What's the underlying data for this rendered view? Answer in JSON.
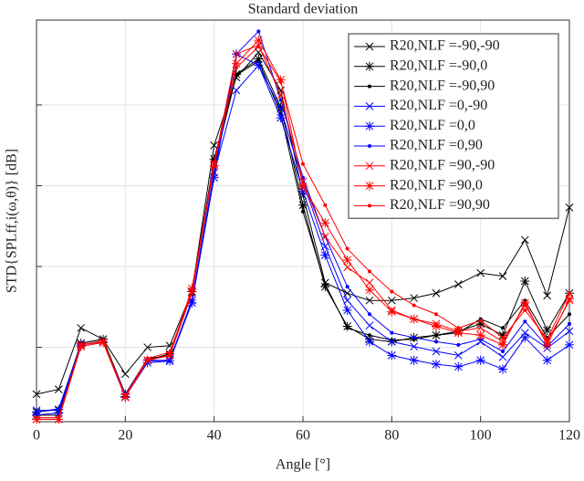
{
  "chart_data": {
    "type": "line",
    "title": "Standard deviation",
    "xlabel": "Angle [°]",
    "ylabel": "STD{SPLff,i(ω,θ)} [dB]",
    "x": [
      0,
      5,
      10,
      15,
      20,
      25,
      30,
      35,
      40,
      45,
      50,
      55,
      60,
      65,
      70,
      75,
      80,
      85,
      90,
      95,
      100,
      105,
      110,
      115,
      120
    ],
    "xlim": [
      0,
      120
    ],
    "xticks": [
      0,
      20,
      40,
      60,
      80,
      100,
      120
    ],
    "ylim": [
      0.08,
      5.05
    ],
    "yticks": [
      1,
      2,
      3,
      4
    ],
    "show_ytick_labels": false,
    "grid": true,
    "legend": "upper right",
    "series": [
      {
        "name": "R20,NLF =-90,-90",
        "color": "#000000",
        "marker": "x",
        "values": [
          0.42,
          0.48,
          1.24,
          1.1,
          0.67,
          1.0,
          1.02,
          1.69,
          3.5,
          4.34,
          4.65,
          4.18,
          2.88,
          1.8,
          1.67,
          1.58,
          1.58,
          1.61,
          1.67,
          1.78,
          1.92,
          1.88,
          2.33,
          1.64,
          2.73
        ]
      },
      {
        "name": "R20,NLF =-90,0",
        "color": "#000000",
        "marker": "*",
        "values": [
          0.2,
          0.23,
          1.05,
          1.1,
          0.42,
          0.84,
          0.92,
          1.69,
          3.33,
          4.38,
          4.57,
          3.97,
          2.76,
          1.75,
          1.26,
          1.1,
          1.07,
          1.12,
          1.15,
          1.2,
          1.29,
          1.15,
          1.82,
          1.21,
          1.67
        ]
      },
      {
        "name": "R20,NLF =-90,90",
        "color": "#000000",
        "marker": ".",
        "values": [
          0.16,
          0.16,
          1.05,
          1.1,
          0.42,
          0.86,
          0.9,
          1.67,
          3.25,
          4.37,
          4.54,
          3.89,
          2.68,
          1.78,
          1.24,
          1.15,
          1.09,
          1.1,
          1.15,
          1.18,
          1.35,
          1.24,
          1.58,
          1.12,
          1.41
        ]
      },
      {
        "name": "R20,NLF =0,-90",
        "color": "#0000ff",
        "marker": "x",
        "values": [
          0.22,
          0.22,
          1.03,
          1.07,
          0.42,
          0.84,
          0.84,
          1.58,
          3.16,
          4.18,
          4.49,
          3.95,
          3.05,
          2.25,
          1.58,
          1.27,
          1.07,
          1.01,
          0.95,
          0.9,
          1.07,
          0.88,
          1.18,
          0.99,
          1.2
        ]
      },
      {
        "name": "R20,NLF =0,0",
        "color": "#0000ff",
        "marker": "*",
        "values": [
          0.16,
          0.19,
          1.03,
          1.07,
          0.39,
          0.81,
          0.83,
          1.55,
          3.1,
          4.63,
          4.49,
          3.84,
          2.93,
          2.14,
          1.46,
          1.07,
          0.9,
          0.84,
          0.79,
          0.76,
          0.84,
          0.73,
          1.12,
          0.84,
          1.03
        ]
      },
      {
        "name": "R20,NLF =0,90",
        "color": "#0000ff",
        "marker": ".",
        "values": [
          0.2,
          0.24,
          1.03,
          1.07,
          0.41,
          0.83,
          0.84,
          1.58,
          3.16,
          4.63,
          4.91,
          4.06,
          3.1,
          2.37,
          1.75,
          1.41,
          1.18,
          1.12,
          1.07,
          1.03,
          1.1,
          0.95,
          1.32,
          1.01,
          1.29
        ]
      },
      {
        "name": "R20,NLF =90,-90",
        "color": "#ff0000",
        "marker": "x",
        "values": [
          0.11,
          0.11,
          1.03,
          1.07,
          0.39,
          0.84,
          0.9,
          1.67,
          3.27,
          4.63,
          4.74,
          4.12,
          3.05,
          2.37,
          1.99,
          1.8,
          1.46,
          1.35,
          1.29,
          1.2,
          1.24,
          1.07,
          1.52,
          1.07,
          1.58
        ]
      },
      {
        "name": "R20,NLF =90,0",
        "color": "#ff0000",
        "marker": "*",
        "values": [
          0.11,
          0.11,
          1.01,
          1.06,
          0.38,
          0.84,
          0.9,
          1.73,
          3.25,
          4.51,
          4.8,
          4.31,
          2.99,
          2.54,
          2.08,
          1.71,
          1.44,
          1.35,
          1.26,
          1.18,
          1.15,
          1.03,
          1.55,
          1.03,
          1.6
        ]
      },
      {
        "name": "R20,NLF =90,90",
        "color": "#ff0000",
        "marker": ".",
        "values": [
          0.13,
          0.13,
          1.03,
          1.08,
          0.4,
          0.86,
          0.94,
          1.69,
          3.29,
          4.46,
          4.72,
          4.29,
          3.27,
          2.76,
          2.22,
          1.94,
          1.69,
          1.52,
          1.41,
          1.24,
          1.33,
          1.12,
          1.46,
          1.1,
          1.67
        ]
      }
    ]
  }
}
